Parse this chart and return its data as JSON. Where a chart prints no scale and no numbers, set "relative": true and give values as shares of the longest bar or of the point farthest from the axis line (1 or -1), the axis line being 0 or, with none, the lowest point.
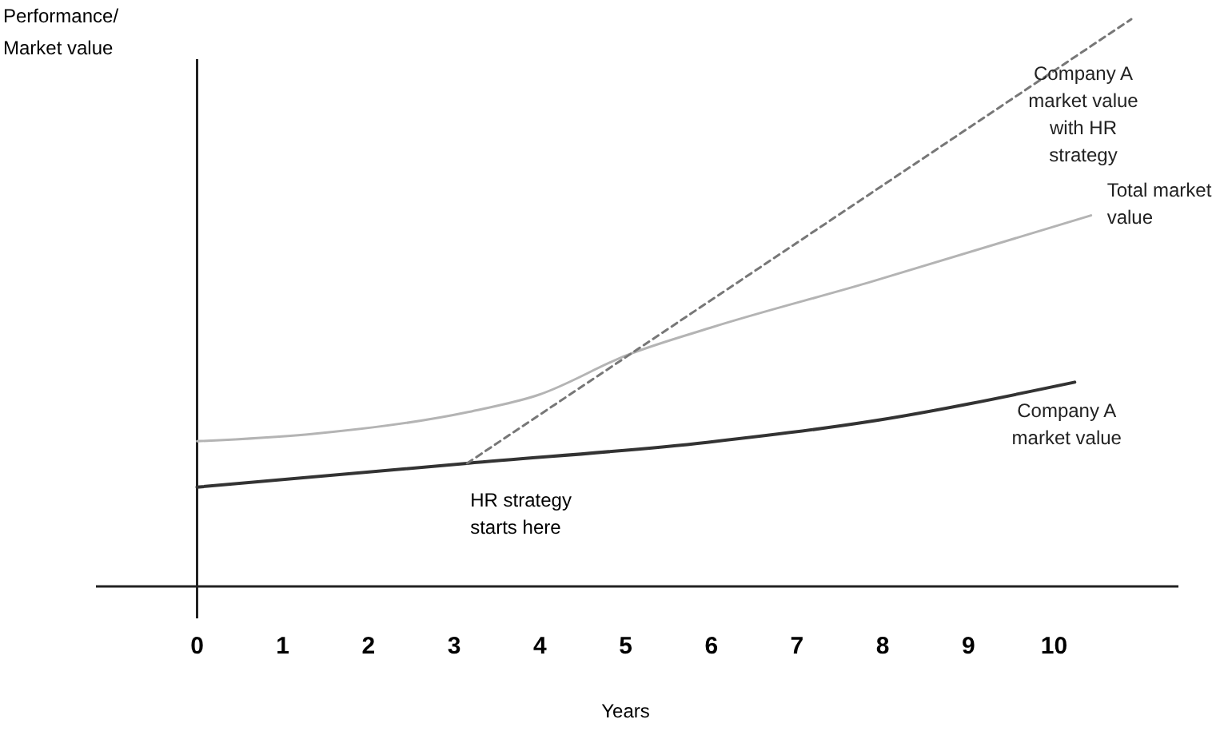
{
  "chart_data": {
    "type": "line",
    "relative": true,
    "xlabel": "Years",
    "ylabel": "Performance/ Market value",
    "xlim": [
      -1.18,
      11.45
    ],
    "xticks": [
      0,
      1,
      2,
      3,
      4,
      5,
      6,
      7,
      8,
      9,
      10
    ],
    "marker": "none",
    "series": [
      {
        "name": "Total market value",
        "color": "#b4b4b4",
        "line_style": "solid",
        "x": [
          0,
          1.29,
          3.15,
          3.99,
          5.02,
          5.99,
          7.82,
          10.43
        ],
        "values": [
          0.256,
          0.268,
          0.307,
          0.338,
          0.408,
          0.456,
          0.535,
          0.654
        ]
      },
      {
        "name": "Company A market value",
        "color": "#333333",
        "line_style": "solid",
        "x": [
          0,
          3.15,
          5.95,
          7.82,
          10.24
        ],
        "values": [
          0.175,
          0.217,
          0.254,
          0.29,
          0.36
        ]
      },
      {
        "name": "Company A market value with HR strategy",
        "color": "#777777",
        "line_style": "dashed",
        "x": [
          3.15,
          10.9
        ],
        "values": [
          0.217,
          1.0
        ]
      }
    ],
    "annotations": [
      {
        "text": "HR strategy starts here",
        "x": 3.15,
        "y": 0.217
      }
    ]
  }
}
